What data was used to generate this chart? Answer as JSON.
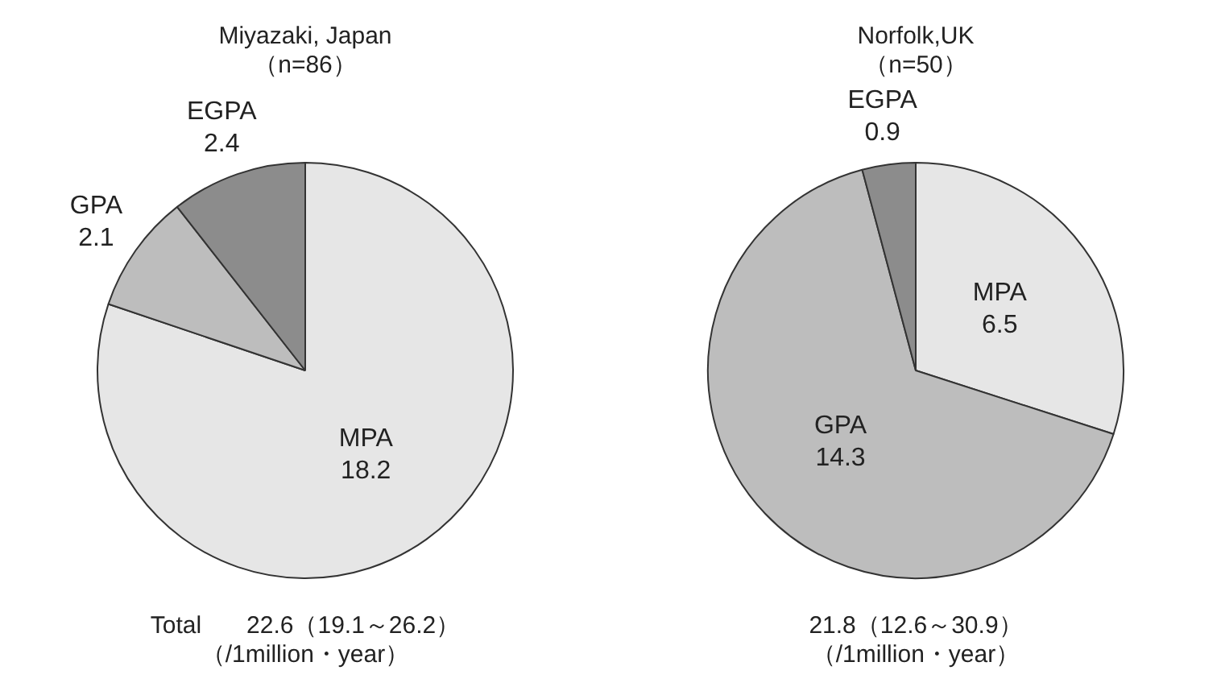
{
  "chart_data": [
    {
      "type": "pie",
      "title": "Miyazaki, Japan",
      "subtitle": "（n=86）",
      "categories": [
        "MPA",
        "GPA",
        "EGPA"
      ],
      "values": [
        18.2,
        2.1,
        2.4
      ],
      "colors": [
        "#e6e6e6",
        "#bdbdbd",
        "#8c8c8c"
      ],
      "data_labels": true,
      "legend": false,
      "annotations": [
        "Total",
        "22.6（19.1～26.2）",
        "（/1million・year）"
      ]
    },
    {
      "type": "pie",
      "title": "Norfolk,UK",
      "subtitle": "（n=50）",
      "categories": [
        "MPA",
        "GPA",
        "EGPA"
      ],
      "values": [
        6.5,
        14.3,
        0.9
      ],
      "colors": [
        "#e6e6e6",
        "#bdbdbd",
        "#8c8c8c"
      ],
      "data_labels": true,
      "legend": false,
      "annotations": [
        "21.8（12.6～30.9）",
        "（/1million・year）"
      ]
    }
  ]
}
